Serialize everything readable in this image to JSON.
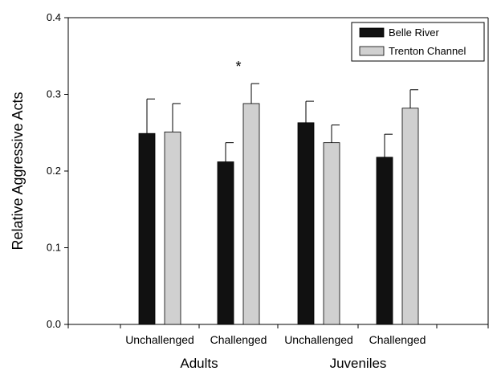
{
  "chart_data": {
    "type": "bar",
    "ylabel": "Relative Aggressive Acts",
    "ylim": [
      0,
      0.4
    ],
    "yticks": [
      "0.0",
      "0.1",
      "0.2",
      "0.3",
      "0.4"
    ],
    "categories": [
      "Unchallenged",
      "Challenged",
      "Unchallenged",
      "Challenged"
    ],
    "groups": [
      {
        "label": "Adults",
        "categories": [
          0,
          1
        ]
      },
      {
        "label": "Juveniles",
        "categories": [
          2,
          3
        ]
      }
    ],
    "series": [
      {
        "name": "Belle River",
        "color": "#111111",
        "values": [
          0.249,
          0.212,
          0.263,
          0.218
        ],
        "errors": [
          0.045,
          0.025,
          0.028,
          0.03
        ]
      },
      {
        "name": "Trenton Channel",
        "color": "#d0d0d0",
        "values": [
          0.251,
          0.288,
          0.237,
          0.282
        ],
        "errors": [
          0.037,
          0.026,
          0.023,
          0.024
        ]
      }
    ],
    "annotations": [
      {
        "text": "*",
        "category": 1
      }
    ],
    "legend_position": "top-right",
    "grid": false
  }
}
